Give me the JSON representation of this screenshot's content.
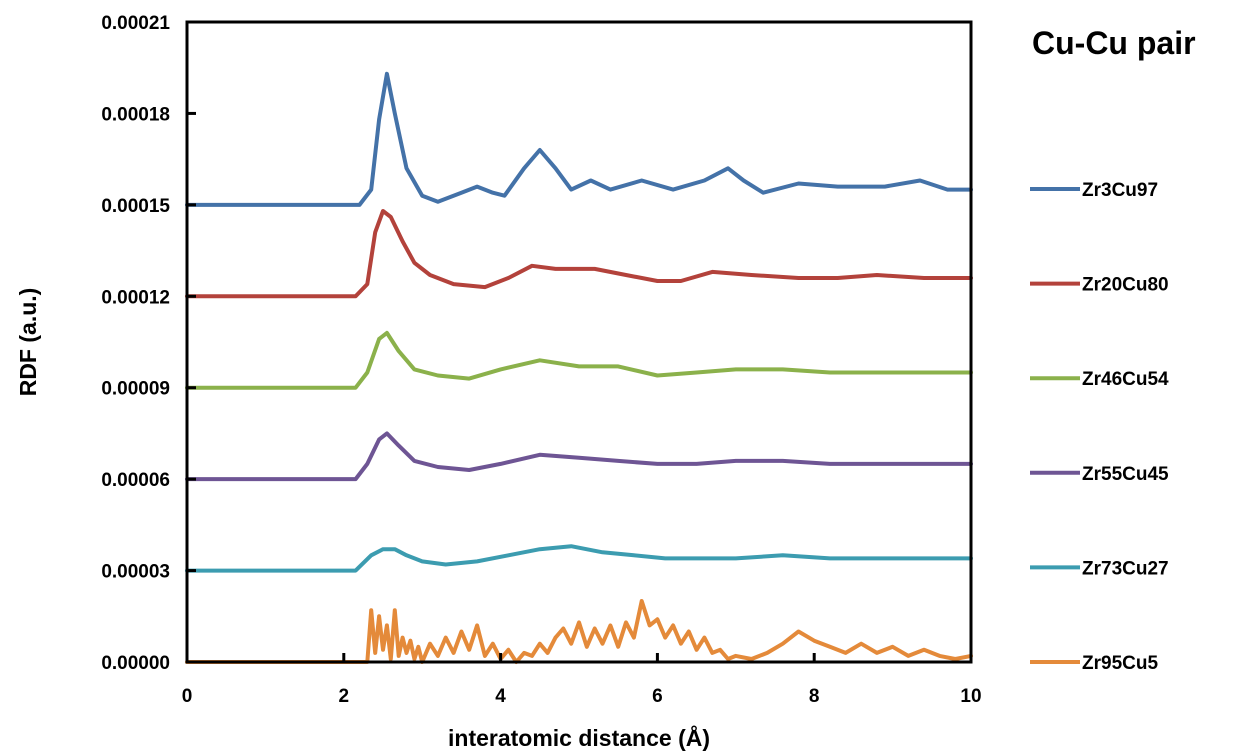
{
  "chart_data": {
    "type": "line",
    "title": "Cu-Cu pair",
    "xlabel": "interatomic distance (Å)",
    "ylabel": "RDF (a.u.)",
    "xlim": [
      0,
      10
    ],
    "ylim": [
      0,
      0.00021
    ],
    "x_ticks": [
      "0",
      "2",
      "4",
      "6",
      "8",
      "10"
    ],
    "y_ticks": [
      "0.00000",
      "0.00003",
      "0.00006",
      "0.00009",
      "0.00012",
      "0.00015",
      "0.00018",
      "0.00021"
    ],
    "grid": false,
    "legend_position": "right",
    "series": [
      {
        "name": "Zr3Cu97",
        "color": "#4472a8",
        "x": [
          0,
          2.2,
          2.35,
          2.45,
          2.55,
          2.65,
          2.8,
          3.0,
          3.2,
          3.5,
          3.7,
          3.9,
          4.05,
          4.3,
          4.5,
          4.7,
          4.9,
          5.15,
          5.4,
          5.8,
          6.2,
          6.6,
          6.9,
          7.1,
          7.35,
          7.8,
          8.3,
          8.9,
          9.35,
          9.7,
          10
        ],
        "y": [
          0.00015,
          0.00015,
          0.000155,
          0.000178,
          0.000193,
          0.00018,
          0.000162,
          0.000153,
          0.000151,
          0.000154,
          0.000156,
          0.000154,
          0.000153,
          0.000162,
          0.000168,
          0.000162,
          0.000155,
          0.000158,
          0.000155,
          0.000158,
          0.000155,
          0.000158,
          0.000162,
          0.000158,
          0.000154,
          0.000157,
          0.000156,
          0.000156,
          0.000158,
          0.000155,
          0.000155
        ]
      },
      {
        "name": "Zr20Cu80",
        "color": "#b3423b",
        "x": [
          0,
          2.15,
          2.3,
          2.4,
          2.5,
          2.6,
          2.75,
          2.9,
          3.1,
          3.4,
          3.8,
          4.1,
          4.4,
          4.7,
          5.2,
          5.6,
          6.0,
          6.3,
          6.7,
          7.2,
          7.8,
          8.3,
          8.8,
          9.4,
          10
        ],
        "y": [
          0.00012,
          0.00012,
          0.000124,
          0.000141,
          0.000148,
          0.000146,
          0.000138,
          0.000131,
          0.000127,
          0.000124,
          0.000123,
          0.000126,
          0.00013,
          0.000129,
          0.000129,
          0.000127,
          0.000125,
          0.000125,
          0.000128,
          0.000127,
          0.000126,
          0.000126,
          0.000127,
          0.000126,
          0.000126
        ]
      },
      {
        "name": "Zr46Cu54",
        "color": "#8bb14b",
        "x": [
          0,
          2.15,
          2.3,
          2.45,
          2.55,
          2.7,
          2.9,
          3.2,
          3.6,
          4.0,
          4.5,
          5.0,
          5.5,
          6.0,
          6.5,
          7.0,
          7.6,
          8.2,
          8.8,
          9.4,
          10
        ],
        "y": [
          9e-05,
          9e-05,
          9.5e-05,
          0.000106,
          0.000108,
          0.000102,
          9.6e-05,
          9.4e-05,
          9.3e-05,
          9.6e-05,
          9.9e-05,
          9.7e-05,
          9.7e-05,
          9.4e-05,
          9.5e-05,
          9.6e-05,
          9.6e-05,
          9.5e-05,
          9.5e-05,
          9.5e-05,
          9.5e-05
        ]
      },
      {
        "name": "Zr55Cu45",
        "color": "#6e5594",
        "x": [
          0,
          2.15,
          2.3,
          2.45,
          2.55,
          2.7,
          2.9,
          3.2,
          3.6,
          4.0,
          4.5,
          5.0,
          5.5,
          6.0,
          6.5,
          7.0,
          7.6,
          8.2,
          8.8,
          9.4,
          10
        ],
        "y": [
          6e-05,
          6e-05,
          6.5e-05,
          7.3e-05,
          7.5e-05,
          7.1e-05,
          6.6e-05,
          6.4e-05,
          6.3e-05,
          6.5e-05,
          6.8e-05,
          6.7e-05,
          6.6e-05,
          6.5e-05,
          6.5e-05,
          6.6e-05,
          6.6e-05,
          6.5e-05,
          6.5e-05,
          6.5e-05,
          6.5e-05
        ]
      },
      {
        "name": "Zr73Cu27",
        "color": "#3c9cb0",
        "x": [
          0,
          2.15,
          2.35,
          2.5,
          2.65,
          2.8,
          3.0,
          3.3,
          3.7,
          4.1,
          4.5,
          4.9,
          5.3,
          5.7,
          6.1,
          6.5,
          7.0,
          7.6,
          8.2,
          8.8,
          9.4,
          10
        ],
        "y": [
          3e-05,
          3e-05,
          3.5e-05,
          3.7e-05,
          3.7e-05,
          3.5e-05,
          3.3e-05,
          3.2e-05,
          3.3e-05,
          3.5e-05,
          3.7e-05,
          3.8e-05,
          3.6e-05,
          3.5e-05,
          3.4e-05,
          3.4e-05,
          3.4e-05,
          3.5e-05,
          3.4e-05,
          3.4e-05,
          3.4e-05,
          3.4e-05
        ]
      },
      {
        "name": "Zr95Cu5",
        "color": "#e48a3a",
        "x": [
          0,
          2.3,
          2.35,
          2.4,
          2.45,
          2.5,
          2.55,
          2.6,
          2.65,
          2.7,
          2.75,
          2.8,
          2.85,
          2.9,
          2.95,
          3.0,
          3.1,
          3.2,
          3.3,
          3.4,
          3.5,
          3.6,
          3.7,
          3.8,
          3.9,
          4.0,
          4.1,
          4.2,
          4.3,
          4.4,
          4.5,
          4.6,
          4.7,
          4.8,
          4.9,
          5.0,
          5.1,
          5.2,
          5.3,
          5.4,
          5.5,
          5.6,
          5.7,
          5.8,
          5.9,
          6.0,
          6.1,
          6.2,
          6.3,
          6.4,
          6.5,
          6.6,
          6.7,
          6.8,
          6.9,
          7.0,
          7.2,
          7.4,
          7.6,
          7.8,
          8.0,
          8.2,
          8.4,
          8.6,
          8.8,
          9.0,
          9.2,
          9.4,
          9.6,
          9.8,
          10
        ],
        "y": [
          0,
          0,
          1.7e-05,
          3e-06,
          1.5e-05,
          4e-06,
          1.2e-05,
          1e-06,
          1.7e-05,
          2e-06,
          8e-06,
          3e-06,
          7e-06,
          1e-06,
          5e-06,
          0,
          6e-06,
          2e-06,
          8e-06,
          3e-06,
          1e-05,
          4e-06,
          1.2e-05,
          2e-06,
          6e-06,
          1e-06,
          4e-06,
          0,
          3e-06,
          2e-06,
          6e-06,
          3e-06,
          8e-06,
          1.1e-05,
          6e-06,
          1.3e-05,
          5e-06,
          1.1e-05,
          6e-06,
          1.2e-05,
          5e-06,
          1.3e-05,
          8e-06,
          2e-05,
          1.2e-05,
          1.4e-05,
          8e-06,
          1.2e-05,
          6e-06,
          1e-05,
          4e-06,
          8e-06,
          3e-06,
          4e-06,
          1e-06,
          2e-06,
          1e-06,
          3e-06,
          6e-06,
          1e-05,
          7e-06,
          5e-06,
          3e-06,
          6e-06,
          3e-06,
          5e-06,
          2e-06,
          4e-06,
          2e-06,
          1e-06,
          2e-06
        ]
      }
    ]
  }
}
